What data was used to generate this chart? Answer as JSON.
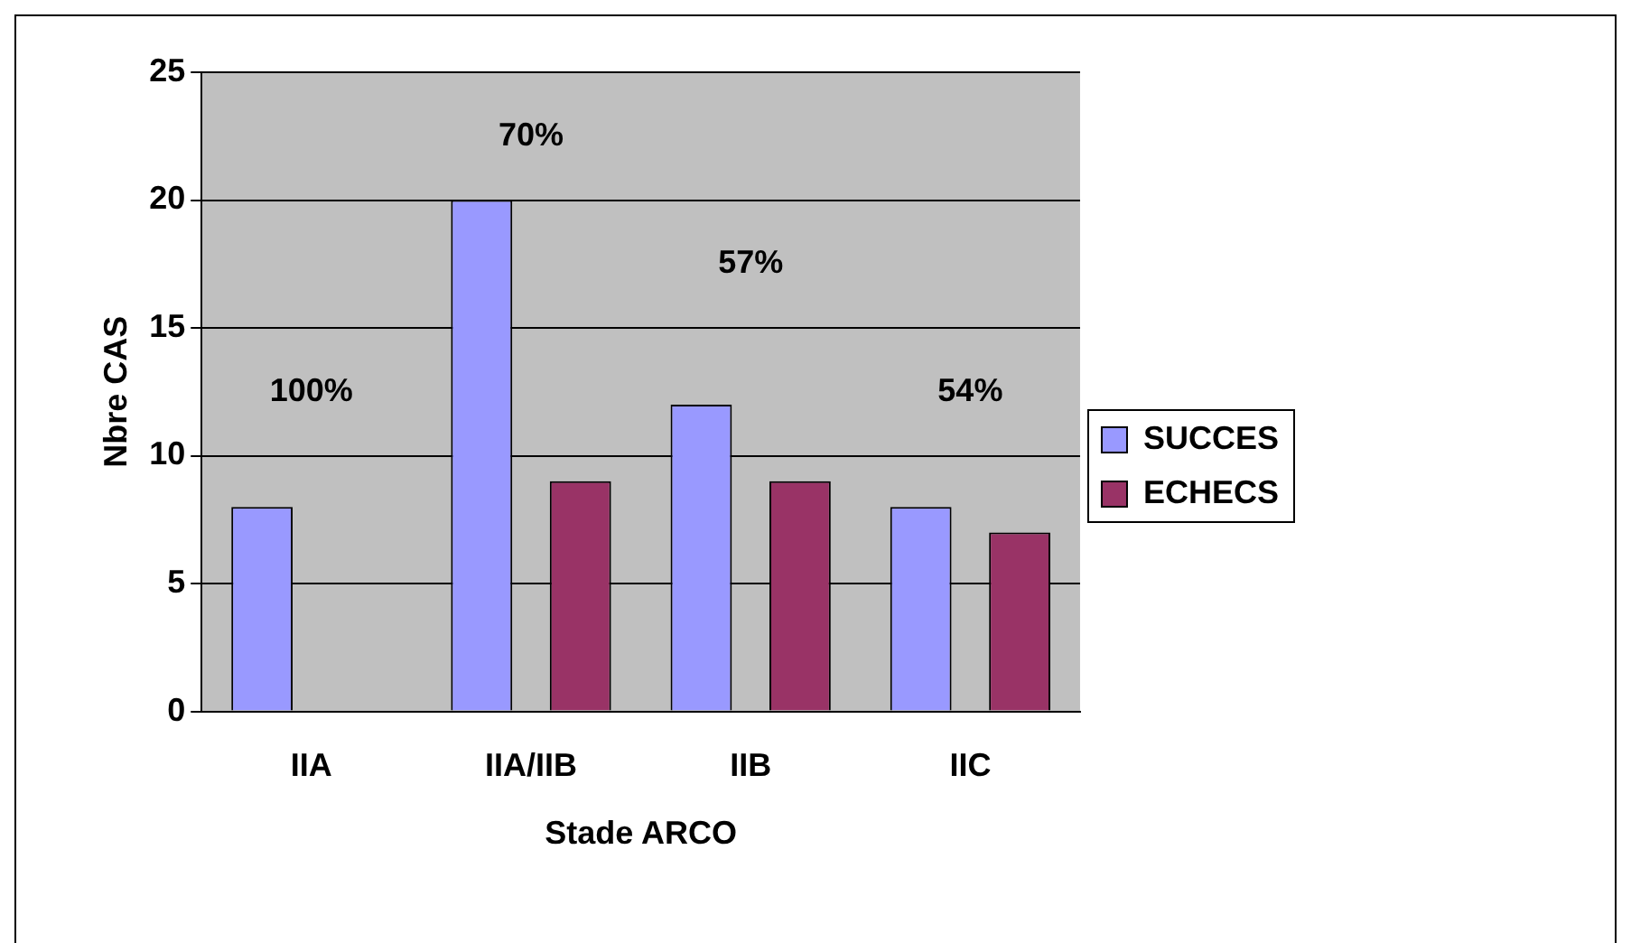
{
  "chart_data": {
    "type": "bar",
    "xlabel": "Stade ARCO",
    "ylabel": "Nbre CAS",
    "categories": [
      "IIA",
      "IIA/IIB",
      "IIB",
      "IIC"
    ],
    "series": [
      {
        "name": "SUCCES",
        "color": "#9999ff",
        "values": [
          8,
          20,
          12,
          8
        ]
      },
      {
        "name": "ECHECS",
        "color": "#993366",
        "values": [
          0,
          9,
          9,
          7
        ]
      }
    ],
    "ylim": [
      0,
      25
    ],
    "yticks": [
      0,
      5,
      10,
      15,
      20,
      25
    ],
    "grid": "y",
    "legend": "right",
    "annotations": [
      "100%",
      "70%",
      "57%",
      "54%"
    ]
  }
}
